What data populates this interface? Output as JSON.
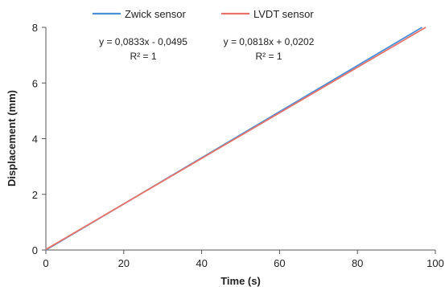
{
  "chart_data": {
    "type": "line",
    "title": "",
    "xlabel": "Time (s)",
    "ylabel": "Displacement (mm)",
    "xlim": [
      0,
      100
    ],
    "ylim": [
      0,
      8
    ],
    "x_ticks": [
      0,
      20,
      40,
      60,
      80,
      100
    ],
    "y_ticks": [
      0,
      2,
      4,
      6,
      8
    ],
    "x_tick_labels": [
      "0",
      "20",
      "40",
      "60",
      "80",
      "100"
    ],
    "y_tick_labels": [
      "0",
      "2",
      "4",
      "6",
      "8"
    ],
    "grid": false,
    "legend_position": "top",
    "series": [
      {
        "name": "Zwick sensor",
        "color": "#4a90d9",
        "x": [
          0,
          96.6
        ],
        "y": [
          -0.0495,
          8.0
        ]
      },
      {
        "name": "LVDT sensor",
        "color": "#e8736a",
        "x": [
          0,
          97.55
        ],
        "y": [
          0.0202,
          8.0
        ]
      }
    ],
    "annotations": [
      {
        "equation": "y = 0,0833x - 0,0495",
        "r2": "R² = 1"
      },
      {
        "equation": "y = 0,0818x + 0,0202",
        "r2": "R² = 1"
      }
    ]
  }
}
